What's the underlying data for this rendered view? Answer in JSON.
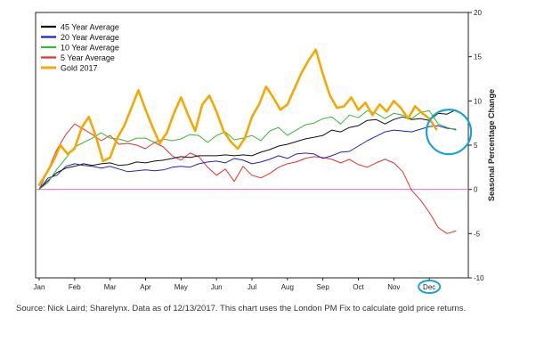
{
  "chart_data": {
    "type": "line",
    "xlabel": "",
    "ylabel": "Seasonal Percentage Change",
    "ylim": [
      -10,
      20
    ],
    "y_ticks": [
      "20",
      "15",
      "10",
      "5",
      "0",
      "-5",
      "-10"
    ],
    "y_tick_values": [
      20,
      15,
      10,
      5,
      0,
      -5,
      -10
    ],
    "x_tick_labels": [
      "Jan",
      "Feb",
      "Mar",
      "Apr",
      "May",
      "Jun",
      "Jul",
      "Aug",
      "Sep",
      "Oct",
      "Nov",
      "Dec"
    ],
    "highlighted_label": "Dec",
    "legend_position": "top-left",
    "zero_line_color": "#e070d0",
    "highlight_circle_color": "#1aa3d6",
    "series": [
      {
        "name": "45 Year Average",
        "color": "#111111",
        "width": 1,
        "x": [
          0,
          0.25,
          0.5,
          0.75,
          1,
          1.25,
          1.5,
          1.75,
          2,
          2.25,
          2.5,
          2.75,
          3,
          3.25,
          3.5,
          3.75,
          4,
          4.25,
          4.5,
          4.75,
          5,
          5.25,
          5.5,
          5.75,
          6,
          6.25,
          6.5,
          6.75,
          7,
          7.25,
          7.5,
          7.75,
          8,
          8.25,
          8.5,
          8.75,
          9,
          9.25,
          9.5,
          9.75,
          10,
          10.25,
          10.5,
          10.75,
          11,
          11.25,
          11.5,
          11.75
        ],
        "y": [
          0,
          1.0,
          1.9,
          2.4,
          2.6,
          2.9,
          2.7,
          2.9,
          3.0,
          2.7,
          2.8,
          3.1,
          3.0,
          3.2,
          3.3,
          3.5,
          3.7,
          3.6,
          3.8,
          3.8,
          3.8,
          3.9,
          3.8,
          3.9,
          3.8,
          4.2,
          4.5,
          4.9,
          5.1,
          5.4,
          5.7,
          5.9,
          6.1,
          6.7,
          6.5,
          7.0,
          7.2,
          7.8,
          7.9,
          7.4,
          7.9,
          8.2,
          7.9,
          8.0,
          7.8,
          8.6,
          8.5,
          9.0
        ]
      },
      {
        "name": "20 Year Average",
        "color": "#2222cc",
        "width": 1,
        "x": [
          0,
          0.25,
          0.5,
          0.75,
          1,
          1.25,
          1.5,
          1.75,
          2,
          2.25,
          2.5,
          2.75,
          3,
          3.25,
          3.5,
          3.75,
          4,
          4.25,
          4.5,
          4.75,
          5,
          5.25,
          5.5,
          5.75,
          6,
          6.25,
          6.5,
          6.75,
          7,
          7.25,
          7.5,
          7.75,
          8,
          8.25,
          8.5,
          8.75,
          9,
          9.25,
          9.5,
          9.75,
          10,
          10.25,
          10.5,
          10.75,
          11,
          11.25,
          11.5,
          11.75
        ],
        "y": [
          0,
          1.3,
          1.6,
          2.6,
          2.9,
          2.7,
          2.6,
          2.4,
          2.6,
          2.3,
          2.0,
          2.1,
          2.2,
          2.1,
          2.2,
          2.5,
          2.6,
          2.5,
          2.9,
          3.1,
          3.2,
          3.0,
          3.5,
          3.3,
          2.9,
          3.1,
          3.4,
          3.8,
          3.5,
          4.0,
          4.1,
          4.0,
          3.5,
          3.8,
          4.2,
          4.3,
          4.9,
          5.5,
          6.0,
          6.5,
          6.7,
          6.6,
          6.5,
          6.8,
          7.1,
          7.2,
          6.9,
          6.8
        ]
      },
      {
        "name": "10 Year Average",
        "color": "#33bb33",
        "width": 1,
        "x": [
          0,
          0.25,
          0.5,
          0.75,
          1,
          1.25,
          1.5,
          1.75,
          2,
          2.25,
          2.5,
          2.75,
          3,
          3.25,
          3.5,
          3.75,
          4,
          4.25,
          4.5,
          4.75,
          5,
          5.25,
          5.5,
          5.75,
          6,
          6.25,
          6.5,
          6.75,
          7,
          7.25,
          7.5,
          7.75,
          8,
          8.25,
          8.5,
          8.75,
          9,
          9.25,
          9.5,
          9.75,
          10,
          10.25,
          10.5,
          10.75,
          11,
          11.25,
          11.5,
          11.75
        ],
        "y": [
          0,
          0.8,
          2.3,
          3.5,
          4.8,
          5.3,
          5.8,
          6.4,
          5.8,
          5.7,
          5.4,
          5.8,
          5.8,
          5.3,
          5.7,
          5.5,
          5.7,
          6.2,
          6.1,
          5.3,
          6.1,
          6.5,
          5.6,
          5.8,
          6.1,
          5.5,
          6.6,
          7.0,
          6.1,
          6.7,
          7.3,
          7.5,
          8.0,
          8.2,
          7.4,
          8.4,
          8.1,
          8.9,
          8.6,
          8.0,
          8.6,
          8.4,
          8.0,
          8.7,
          8.9,
          7.4,
          7.0,
          6.7
        ]
      },
      {
        "name": "5 Year Average",
        "color": "#e83030",
        "width": 1,
        "x": [
          0,
          0.25,
          0.5,
          0.75,
          1,
          1.25,
          1.5,
          1.75,
          2,
          2.25,
          2.5,
          2.75,
          3,
          3.25,
          3.5,
          3.75,
          4,
          4.25,
          4.5,
          4.75,
          5,
          5.25,
          5.5,
          5.75,
          6,
          6.25,
          6.5,
          6.75,
          7,
          7.25,
          7.5,
          7.75,
          8,
          8.25,
          8.5,
          8.75,
          9,
          9.25,
          9.5,
          9.75,
          10,
          10.25,
          10.5,
          10.75,
          11,
          11.25,
          11.5,
          11.75
        ],
        "y": [
          0,
          2.2,
          4.5,
          6.2,
          7.4,
          6.8,
          6.2,
          5.5,
          6.1,
          5.1,
          5.2,
          5.0,
          4.6,
          5.3,
          4.8,
          3.8,
          3.3,
          4.1,
          3.7,
          2.5,
          1.6,
          2.3,
          0.9,
          2.6,
          1.6,
          1.3,
          1.8,
          2.5,
          2.9,
          3.1,
          3.5,
          3.7,
          3.6,
          3.4,
          3.0,
          3.4,
          2.8,
          2.5,
          3.0,
          3.4,
          3.0,
          2.0,
          -0.1,
          -1.2,
          -2.6,
          -4.3,
          -5.0,
          -4.7
        ]
      },
      {
        "name": "Gold 2017",
        "color": "#f5a800",
        "width": 2.6,
        "x": [
          0,
          0.2,
          0.4,
          0.6,
          0.8,
          1.0,
          1.2,
          1.4,
          1.6,
          1.8,
          2.0,
          2.2,
          2.4,
          2.6,
          2.8,
          3.0,
          3.2,
          3.4,
          3.6,
          3.8,
          4.0,
          4.2,
          4.4,
          4.6,
          4.8,
          5.0,
          5.2,
          5.4,
          5.6,
          5.8,
          6.0,
          6.2,
          6.4,
          6.6,
          6.8,
          7.0,
          7.2,
          7.4,
          7.6,
          7.8,
          8.0,
          8.2,
          8.4,
          8.6,
          8.8,
          9.0,
          9.2,
          9.4,
          9.6,
          9.8,
          10.0,
          10.2,
          10.4,
          10.6,
          10.8,
          11.0,
          11.2
        ],
        "y": [
          0.5,
          1.8,
          3.2,
          5.0,
          4.0,
          4.6,
          7.0,
          8.2,
          6.0,
          3.2,
          3.6,
          5.8,
          7.2,
          9.2,
          11.2,
          9.0,
          7.0,
          5.2,
          6.4,
          8.6,
          10.4,
          8.4,
          6.6,
          9.6,
          10.6,
          8.8,
          6.6,
          5.4,
          4.6,
          5.8,
          8.2,
          9.6,
          11.6,
          10.4,
          9.0,
          9.6,
          11.4,
          13.2,
          14.6,
          15.8,
          13.0,
          10.6,
          9.2,
          9.4,
          10.4,
          9.0,
          9.8,
          8.4,
          9.6,
          8.8,
          10.0,
          9.2,
          8.0,
          9.4,
          8.6,
          8.0,
          6.8
        ]
      }
    ]
  },
  "source_note": "Source: Nick Laird; Sharelynx. Data as of 12/13/2017. This chart uses the London PM Fix to calculate gold price returns."
}
